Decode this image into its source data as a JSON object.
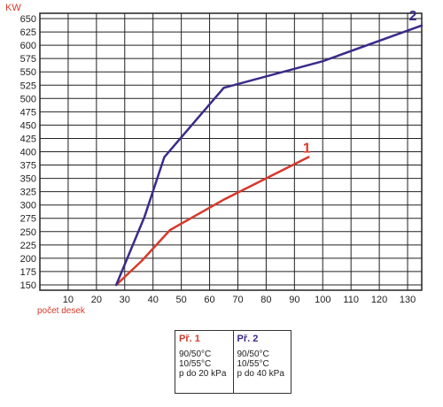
{
  "chart_data": {
    "type": "line",
    "ylabel": "KW",
    "xlabel": "počet desek",
    "xlim": [
      0,
      135
    ],
    "ylim": [
      140,
      660
    ],
    "x_ticks": [
      10,
      20,
      30,
      40,
      50,
      60,
      70,
      80,
      90,
      100,
      110,
      120,
      130
    ],
    "y_ticks": [
      150,
      175,
      200,
      225,
      250,
      275,
      300,
      325,
      350,
      375,
      400,
      425,
      450,
      475,
      500,
      525,
      550,
      575,
      600,
      625,
      650
    ],
    "grid": true,
    "series": [
      {
        "name": "1",
        "color": "#d63a2b",
        "x": [
          27,
          36,
          46,
          65,
          95
        ],
        "y": [
          150,
          195,
          253,
          310,
          390
        ]
      },
      {
        "name": "2",
        "color": "#3a2b8a",
        "x": [
          27,
          37,
          44,
          65,
          100,
          135
        ],
        "y": [
          150,
          278,
          390,
          520,
          570,
          637
        ]
      }
    ]
  },
  "legend": {
    "items": [
      {
        "title": "Př. 1",
        "color": "#d63a2b",
        "lines": [
          "90/50°C",
          "10/55°C",
          "p do 20 kPa"
        ]
      },
      {
        "title": "Př. 2",
        "color": "#3a2b8a",
        "lines": [
          "90/50°C",
          "10/55°C",
          "p do 40 kPa"
        ]
      }
    ]
  }
}
